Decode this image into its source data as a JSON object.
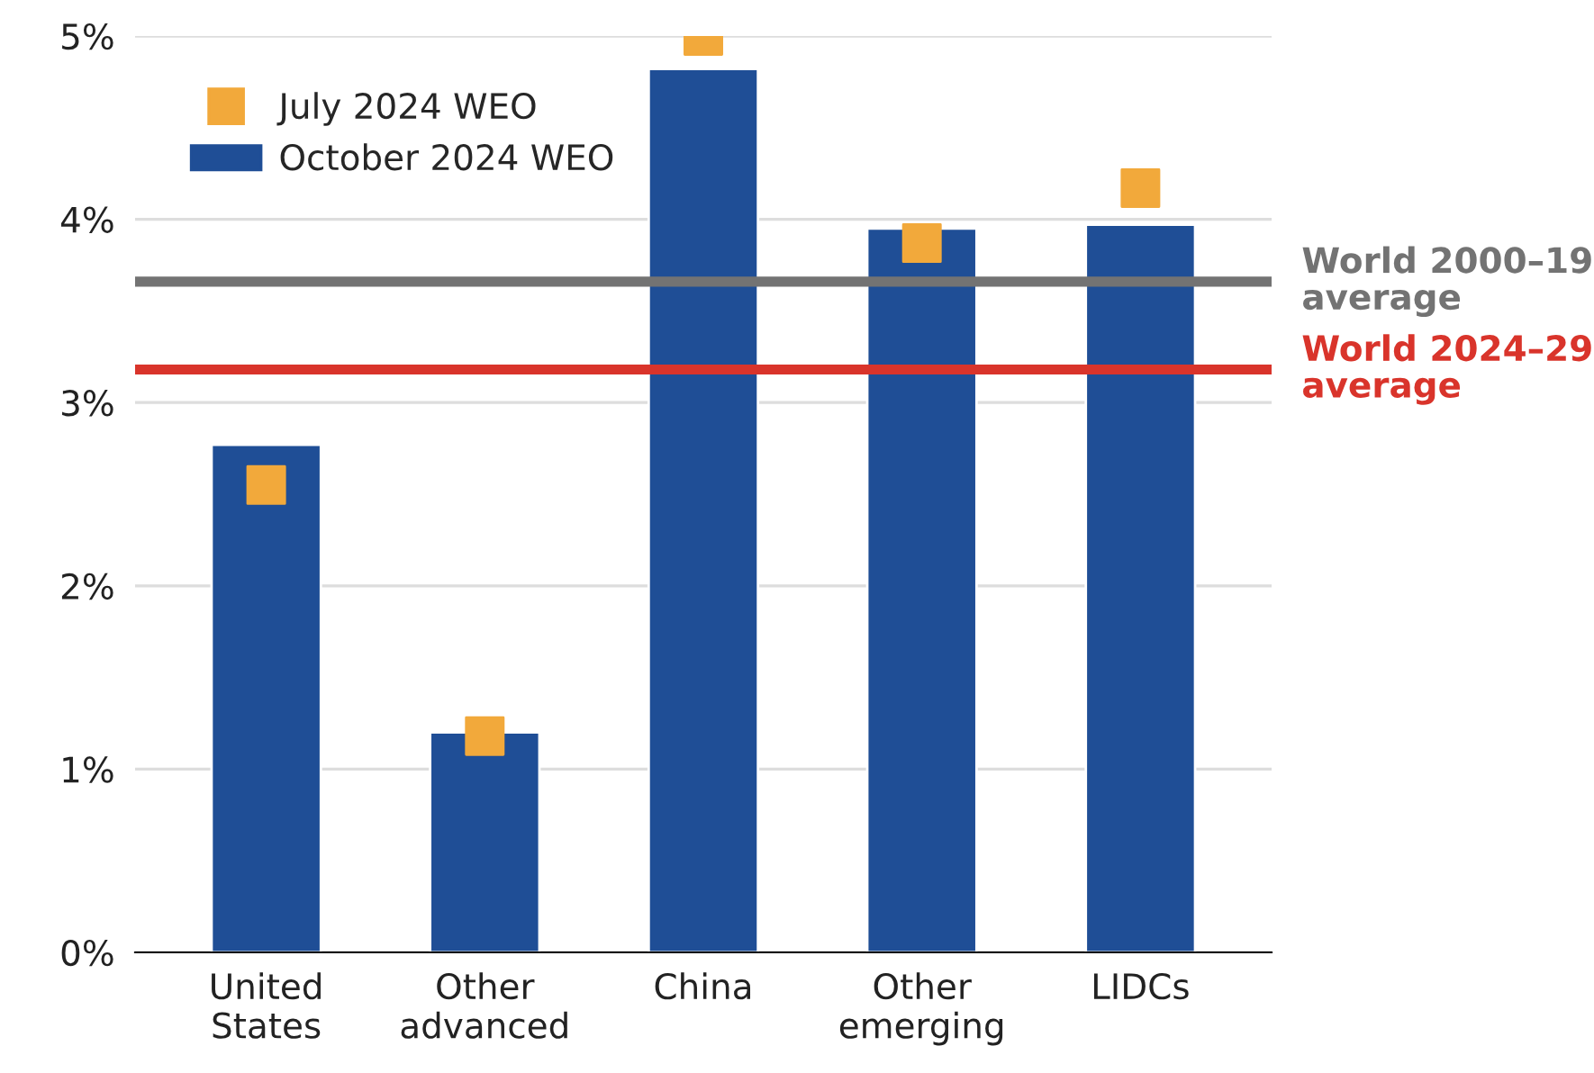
{
  "chart_data": {
    "type": "bar",
    "categories": [
      "United\nStates",
      "Other\nadvanced",
      "China",
      "Other\nemerging",
      "LIDCs"
    ],
    "series": [
      {
        "name": "July 2024 WEO",
        "type": "scatter",
        "marker": "square",
        "color": "#f2a93b",
        "values": [
          2.55,
          1.18,
          5.0,
          3.87,
          4.17
        ]
      },
      {
        "name": "October 2024 WEO",
        "color": "#1f4e96",
        "values": [
          2.77,
          1.2,
          4.82,
          3.95,
          3.97
        ]
      }
    ],
    "ylim": [
      0,
      5
    ],
    "yticks": [
      {
        "value": 0,
        "label": "0%"
      },
      {
        "value": 1,
        "label": "1%"
      },
      {
        "value": 2,
        "label": "2%"
      },
      {
        "value": 3,
        "label": "3%"
      },
      {
        "value": 4,
        "label": "4%"
      },
      {
        "value": 5,
        "label": "5%"
      }
    ],
    "ref_lines": [
      {
        "axis": "y",
        "value": 3.66,
        "label": "World 2000–19\naverage",
        "color": "#737373"
      },
      {
        "axis": "y",
        "value": 3.18,
        "label": "World 2024–29\naverage",
        "color": "#d9342b"
      }
    ],
    "grid": "y",
    "legend": "top left"
  }
}
